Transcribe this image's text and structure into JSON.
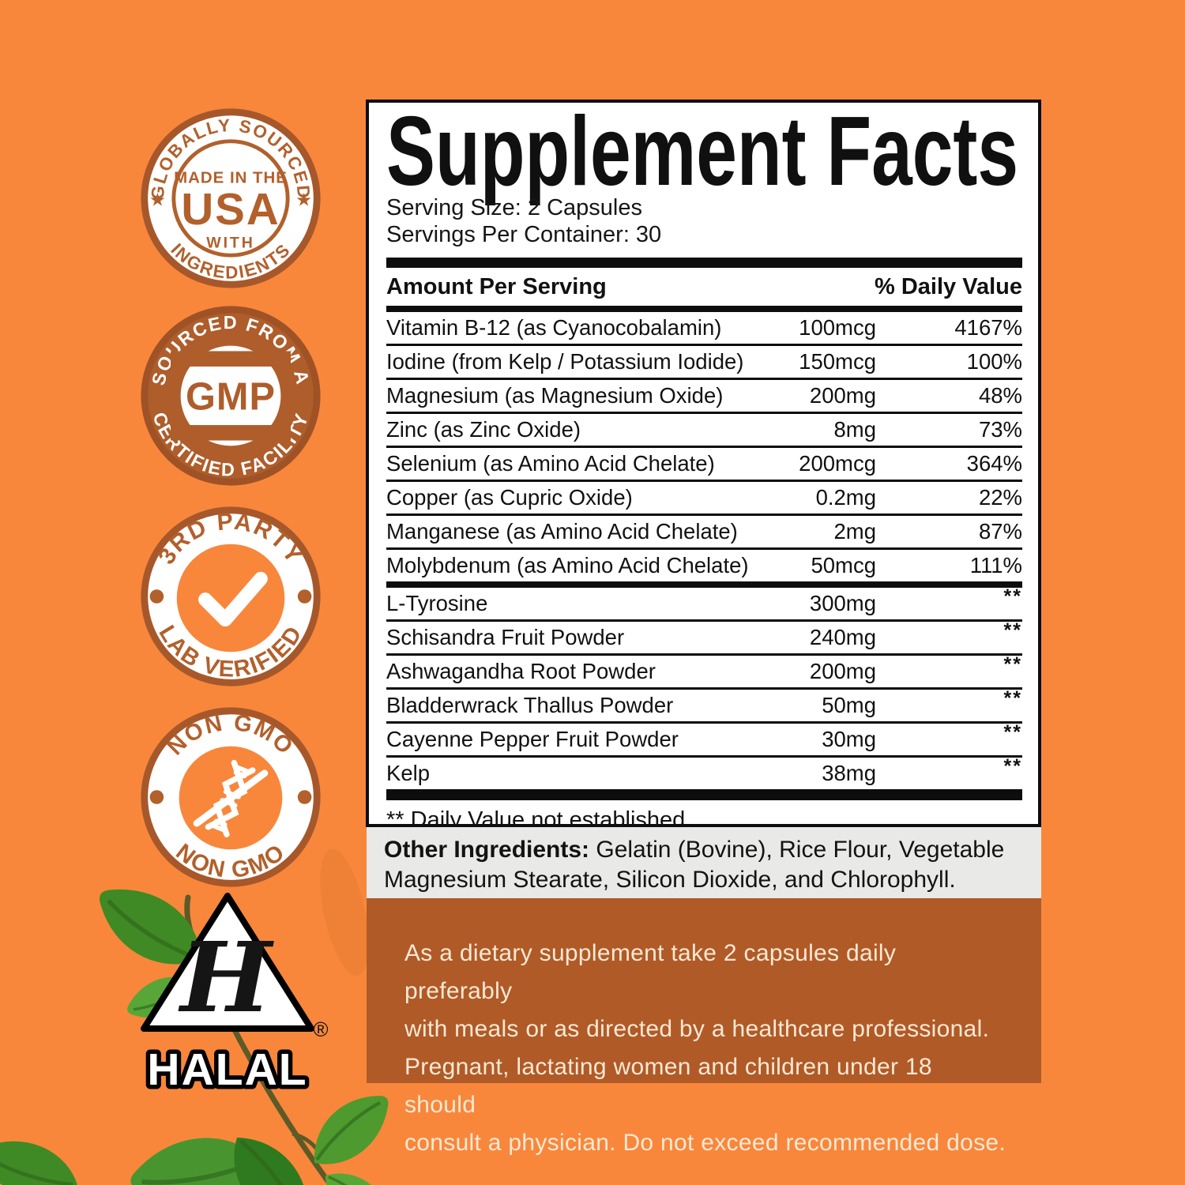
{
  "colors": {
    "background": "#F8873C",
    "panel_border": "#0D0D0D",
    "badge_brown": "#B2602C",
    "badge_ring": "#A6582B",
    "directions_bg": "#B05A28",
    "directions_text": "#F8E9D3",
    "other_ingredients_bg": "#E9E9E7",
    "leaf_green": "#4E9A2E"
  },
  "badges": {
    "usa": {
      "arc_top": "GLOBALLY SOURCED",
      "center_top": "MADE IN THE",
      "center_main": "USA",
      "center_bottom": "WITH",
      "arc_bottom": "INGREDIENTS",
      "star": "★"
    },
    "gmp": {
      "arc_top": "SOURCED FROM A",
      "center": "GMP",
      "arc_bottom": "CERTIFIED FACILITY"
    },
    "lab": {
      "arc_top": "3RD PARTY",
      "arc_bottom": "LAB VERIFIED"
    },
    "non_gmo": {
      "arc_top": "NON GMO",
      "arc_bottom": "NON GMO"
    }
  },
  "halal": {
    "letter": "H",
    "reg": "®",
    "label": "HALAL"
  },
  "panel": {
    "title": "Supplement Facts",
    "serving_size": "Serving Size: 2 Capsules",
    "servings_per_container": "Servings Per Container: 30",
    "columns": {
      "amount": "Amount Per Serving",
      "daily_value": "% Daily Value"
    },
    "rows": [
      {
        "name": "Vitamin B-12 (as Cyanocobalamin)",
        "amount": "100mcg",
        "dv": "4167%",
        "group": 1
      },
      {
        "name": "Iodine (from Kelp / Potassium Iodide)",
        "amount": "150mcg",
        "dv": "100%",
        "group": 1
      },
      {
        "name": "Magnesium (as Magnesium Oxide)",
        "amount": "200mg",
        "dv": "48%",
        "group": 1
      },
      {
        "name": "Zinc (as Zinc Oxide)",
        "amount": "8mg",
        "dv": "73%",
        "group": 1
      },
      {
        "name": "Selenium (as Amino Acid Chelate)",
        "amount": "200mcg",
        "dv": "364%",
        "group": 1
      },
      {
        "name": "Copper (as Cupric Oxide)",
        "amount": "0.2mg",
        "dv": "22%",
        "group": 1
      },
      {
        "name": "Manganese (as Amino Acid Chelate)",
        "amount": "2mg",
        "dv": "87%",
        "group": 1
      },
      {
        "name": "Molybdenum (as Amino Acid Chelate)",
        "amount": "50mcg",
        "dv": "111%",
        "group": 1
      },
      {
        "name": "L-Tyrosine",
        "amount": "300mg",
        "dv": "**",
        "group": 2
      },
      {
        "name": "Schisandra Fruit Powder",
        "amount": "240mg",
        "dv": "**",
        "group": 2
      },
      {
        "name": "Ashwagandha Root Powder",
        "amount": "200mg",
        "dv": "**",
        "group": 2
      },
      {
        "name": "Bladderwrack Thallus Powder",
        "amount": "50mg",
        "dv": "**",
        "group": 2
      },
      {
        "name": "Cayenne Pepper Fruit Powder",
        "amount": "30mg",
        "dv": "**",
        "group": 2
      },
      {
        "name": "Kelp",
        "amount": "38mg",
        "dv": "**",
        "group": 2
      }
    ],
    "footnote": "** Daily Value not established."
  },
  "other_ingredients": {
    "label": "Other Ingredients:",
    "line1_rest": " Gelatin (Bovine), Rice Flour, Vegetable",
    "line2": "Magnesium Stearate, Silicon Dioxide, and Chlorophyll."
  },
  "directions": {
    "lines": [
      "As a dietary supplement take 2 capsules daily preferably",
      "with meals or as directed by a healthcare professional.",
      "Pregnant, lactating women and children under 18 should",
      "consult a physician. Do not exceed recommended dose."
    ]
  }
}
